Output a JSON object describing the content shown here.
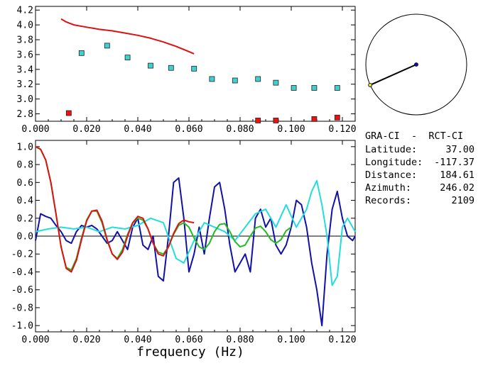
{
  "station": {
    "pair": "GRA-CI  -  RCT-CI",
    "fields": [
      {
        "label": "Latitude:",
        "value": "37.00"
      },
      {
        "label": "Longitude:",
        "value": "-117.37"
      },
      {
        "label": "Distance:",
        "value": "184.61"
      },
      {
        "label": "Azimuth:",
        "value": "246.02"
      },
      {
        "label": "Records:",
        "value": "2109"
      }
    ],
    "azimuth_deg": 246.02
  },
  "colors": {
    "red": "#dd1111",
    "blue": "#1111aa",
    "cyan": "#22dddd",
    "green": "#22bb22",
    "marker_cyan": "#40d0d0",
    "marker_red": "#ee1111"
  },
  "chart_data": [
    {
      "type": "scatter",
      "xlim": [
        0.0,
        0.125
      ],
      "ylim": [
        2.7,
        4.25
      ],
      "xticks": [
        "0.000",
        "0.020",
        "0.040",
        "0.060",
        "0.080",
        "0.100",
        "0.120"
      ],
      "xtick_values": [
        0.0,
        0.02,
        0.04,
        0.06,
        0.08,
        0.1,
        0.12
      ],
      "yticks": [
        "2.8",
        "3.0",
        "3.2",
        "3.4",
        "3.6",
        "3.8",
        "4.0",
        "4.2"
      ],
      "ytick_values": [
        2.8,
        3.0,
        3.2,
        3.4,
        3.6,
        3.8,
        4.0,
        4.2
      ],
      "series": [
        {
          "kind": "line",
          "color": "red",
          "x": [
            0.01,
            0.012,
            0.015,
            0.02,
            0.025,
            0.03,
            0.035,
            0.04,
            0.045,
            0.05,
            0.055,
            0.06,
            0.062
          ],
          "y": [
            4.08,
            4.04,
            4.0,
            3.97,
            3.94,
            3.92,
            3.89,
            3.86,
            3.82,
            3.77,
            3.71,
            3.64,
            3.61
          ]
        },
        {
          "kind": "markers",
          "color": "marker_cyan",
          "x": [
            0.018,
            0.028,
            0.036,
            0.045,
            0.053,
            0.062,
            0.069,
            0.078,
            0.087,
            0.094,
            0.101,
            0.109,
            0.118
          ],
          "y": [
            3.62,
            3.72,
            3.56,
            3.45,
            3.42,
            3.41,
            3.27,
            3.25,
            3.27,
            3.22,
            3.15,
            3.15,
            3.15
          ]
        },
        {
          "kind": "markers",
          "color": "marker_red",
          "x": [
            0.013,
            0.087,
            0.094,
            0.109,
            0.118
          ],
          "y": [
            2.81,
            2.71,
            2.71,
            2.73,
            2.75
          ]
        }
      ]
    },
    {
      "type": "line",
      "xlim": [
        0.0,
        0.125
      ],
      "ylim": [
        -1.07,
        1.07
      ],
      "xlabel": "frequency (Hz)",
      "xticks": [
        "0.000",
        "0.020",
        "0.040",
        "0.060",
        "0.080",
        "0.100",
        "0.120"
      ],
      "xtick_values": [
        0.0,
        0.02,
        0.04,
        0.06,
        0.08,
        0.1,
        0.12
      ],
      "yticks": [
        "1.0",
        "0.8",
        "0.6",
        "0.4",
        "0.2",
        "0.0",
        "-0.2",
        "-0.4",
        "-0.6",
        "-0.8",
        "-1.0"
      ],
      "ytick_values": [
        1.0,
        0.8,
        0.6,
        0.4,
        0.2,
        0.0,
        -0.2,
        -0.4,
        -0.6,
        -0.8,
        -1.0
      ],
      "series": [
        {
          "color": "blue",
          "x": [
            0.0,
            0.002,
            0.004,
            0.006,
            0.008,
            0.01,
            0.012,
            0.014,
            0.016,
            0.018,
            0.02,
            0.022,
            0.024,
            0.026,
            0.028,
            0.03,
            0.032,
            0.034,
            0.036,
            0.038,
            0.04,
            0.042,
            0.044,
            0.046,
            0.048,
            0.05,
            0.052,
            0.054,
            0.056,
            0.058,
            0.06,
            0.062,
            0.064,
            0.066,
            0.068,
            0.07,
            0.072,
            0.074,
            0.076,
            0.078,
            0.08,
            0.082,
            0.084,
            0.086,
            0.088,
            0.09,
            0.092,
            0.094,
            0.096,
            0.098,
            0.1,
            0.102,
            0.104,
            0.106,
            0.108,
            0.11,
            0.112,
            0.114,
            0.116,
            0.118,
            0.12,
            0.122,
            0.124,
            0.125
          ],
          "y": [
            -0.05,
            0.25,
            0.22,
            0.2,
            0.12,
            0.05,
            -0.05,
            -0.08,
            0.05,
            0.12,
            0.1,
            0.12,
            0.08,
            0.0,
            -0.08,
            -0.05,
            0.05,
            -0.05,
            -0.15,
            0.1,
            0.2,
            -0.1,
            -0.15,
            0.0,
            -0.45,
            -0.5,
            0.0,
            0.6,
            0.65,
            0.2,
            -0.4,
            -0.2,
            0.1,
            -0.2,
            0.2,
            0.55,
            0.6,
            0.3,
            -0.1,
            -0.4,
            -0.3,
            -0.2,
            -0.4,
            0.2,
            0.3,
            0.1,
            0.2,
            -0.1,
            -0.2,
            -0.1,
            0.1,
            0.4,
            0.35,
            0.1,
            -0.3,
            -0.6,
            -1.0,
            -0.2,
            0.3,
            0.5,
            0.2,
            0.0,
            -0.05,
            0.0
          ]
        },
        {
          "color": "cyan",
          "x": [
            0.0,
            0.005,
            0.01,
            0.015,
            0.02,
            0.025,
            0.03,
            0.035,
            0.04,
            0.045,
            0.05,
            0.055,
            0.058,
            0.062,
            0.066,
            0.07,
            0.074,
            0.078,
            0.082,
            0.086,
            0.09,
            0.094,
            0.098,
            0.102,
            0.106,
            0.108,
            0.11,
            0.112,
            0.114,
            0.116,
            0.118,
            0.12,
            0.122,
            0.124,
            0.125
          ],
          "y": [
            0.05,
            0.08,
            0.1,
            0.08,
            0.1,
            0.05,
            0.1,
            0.08,
            0.12,
            0.2,
            0.15,
            -0.25,
            -0.3,
            -0.05,
            0.15,
            0.1,
            0.05,
            -0.05,
            0.1,
            0.25,
            0.3,
            0.1,
            0.35,
            0.1,
            0.3,
            0.5,
            0.62,
            0.35,
            0.0,
            -0.55,
            -0.45,
            0.1,
            0.2,
            0.1,
            0.05
          ]
        },
        {
          "color": "green",
          "x": [
            0.0,
            0.002,
            0.004,
            0.006,
            0.008,
            0.01,
            0.012,
            0.014,
            0.016,
            0.018,
            0.02,
            0.022,
            0.024,
            0.026,
            0.028,
            0.03,
            0.032,
            0.034,
            0.036,
            0.038,
            0.04,
            0.042,
            0.044,
            0.046,
            0.048,
            0.05,
            0.052,
            0.054,
            0.056,
            0.058,
            0.06,
            0.062,
            0.064,
            0.066,
            0.068,
            0.07,
            0.072,
            0.074,
            0.076,
            0.078,
            0.08,
            0.082,
            0.084,
            0.086,
            0.088,
            0.09,
            0.092,
            0.094,
            0.096,
            0.098,
            0.1
          ],
          "y": [
            1.0,
            0.97,
            0.85,
            0.6,
            0.25,
            -0.12,
            -0.35,
            -0.38,
            -0.25,
            -0.02,
            0.18,
            0.28,
            0.28,
            0.15,
            -0.05,
            -0.2,
            -0.25,
            -0.15,
            0.02,
            0.15,
            0.2,
            0.18,
            0.08,
            -0.08,
            -0.18,
            -0.2,
            -0.12,
            0.02,
            0.12,
            0.15,
            0.1,
            -0.02,
            -0.12,
            -0.15,
            -0.08,
            0.05,
            0.13,
            0.14,
            0.05,
            -0.06,
            -0.12,
            -0.1,
            0.0,
            0.09,
            0.11,
            0.05,
            -0.04,
            -0.08,
            -0.04,
            0.06,
            0.1
          ]
        },
        {
          "color": "red",
          "x": [
            0.0,
            0.002,
            0.004,
            0.006,
            0.008,
            0.01,
            0.012,
            0.014,
            0.016,
            0.018,
            0.02,
            0.022,
            0.024,
            0.026,
            0.028,
            0.03,
            0.032,
            0.034,
            0.036,
            0.038,
            0.04,
            0.042,
            0.044,
            0.046,
            0.048,
            0.05,
            0.052,
            0.054,
            0.056,
            0.058,
            0.06,
            0.062
          ],
          "y": [
            1.0,
            0.97,
            0.85,
            0.6,
            0.25,
            -0.12,
            -0.36,
            -0.4,
            -0.27,
            -0.04,
            0.17,
            0.28,
            0.29,
            0.17,
            -0.04,
            -0.2,
            -0.26,
            -0.18,
            0.0,
            0.15,
            0.22,
            0.2,
            0.08,
            -0.08,
            -0.2,
            -0.22,
            -0.12,
            0.03,
            0.14,
            0.18,
            0.16,
            0.15
          ]
        }
      ]
    }
  ]
}
